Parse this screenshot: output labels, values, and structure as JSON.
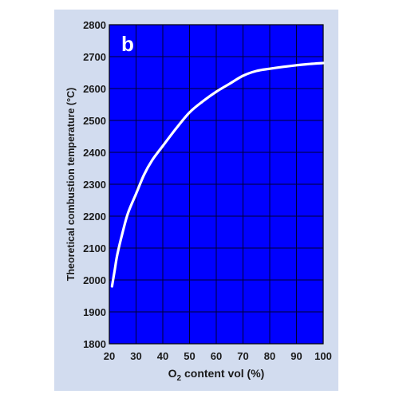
{
  "chart_data": {
    "type": "line",
    "panel_label": "b",
    "xlabel_prefix": "O",
    "xlabel_subscript": "2",
    "xlabel_suffix": " content vol (%)",
    "ylabel": "Theoretical combustion temperature (°C)",
    "xlim": [
      20,
      100
    ],
    "ylim": [
      1800,
      2800
    ],
    "xticks": [
      20,
      30,
      40,
      50,
      60,
      70,
      80,
      90,
      100
    ],
    "yticks": [
      1800,
      1900,
      2000,
      2100,
      2200,
      2300,
      2400,
      2500,
      2600,
      2700,
      2800
    ],
    "grid": true,
    "colors": {
      "plot_background": "#0000ff",
      "gridline": "#000033",
      "curve": "#ffffff",
      "outer_panel": "#d2dcef"
    },
    "series": [
      {
        "x": [
          21,
          22,
          23,
          25,
          27,
          30,
          33,
          36,
          40,
          45,
          50,
          55,
          60,
          65,
          70,
          75,
          80,
          85,
          90,
          95,
          100
        ],
        "values": [
          1980,
          2030,
          2080,
          2150,
          2210,
          2270,
          2330,
          2375,
          2420,
          2475,
          2525,
          2560,
          2590,
          2615,
          2640,
          2655,
          2662,
          2668,
          2673,
          2677,
          2680
        ]
      }
    ]
  }
}
